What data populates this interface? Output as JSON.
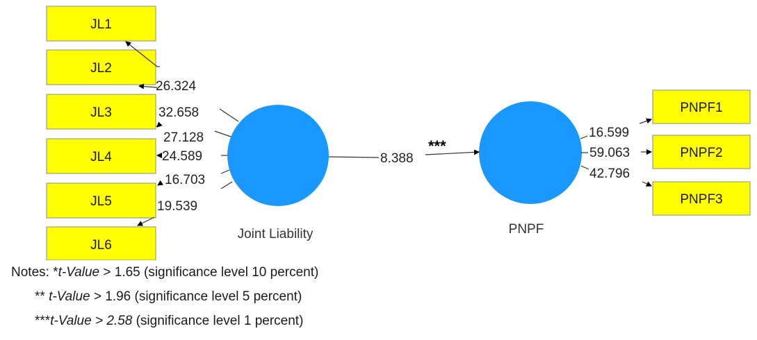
{
  "indicators_left": [
    "JL1",
    "JL2",
    "JL3",
    "JL4",
    "JL5",
    "JL6"
  ],
  "indicators_right": [
    "PNPF1",
    "PNPF2",
    "PNPF3"
  ],
  "latent": {
    "joint_liability": "Joint Liability",
    "pnpf": "PNPF"
  },
  "weights_left": [
    "26.324",
    "32.658",
    "27.128",
    "24.589",
    "16.703",
    "19.539"
  ],
  "weights_right": [
    "16.599",
    "59.063",
    "42.796"
  ],
  "path": {
    "value": "8.388",
    "stars": "***"
  },
  "notes": {
    "line1_prefix": "Notes: *",
    "line1_var": "t-Value",
    "line1_rest": " > 1.65 (significance level 10 percent)",
    "line2_prefix": "** ",
    "line2_var": "t-Value",
    "line2_rest": " > 1.96 (significance level 5 percent)",
    "line3_prefix": "***",
    "line3_var": "t-Value > 2.58",
    "line3_rest": " (significance level 1 percent)"
  },
  "colors": {
    "indicator_fill": "#ffff00",
    "latent_fill": "#1a98ff"
  }
}
